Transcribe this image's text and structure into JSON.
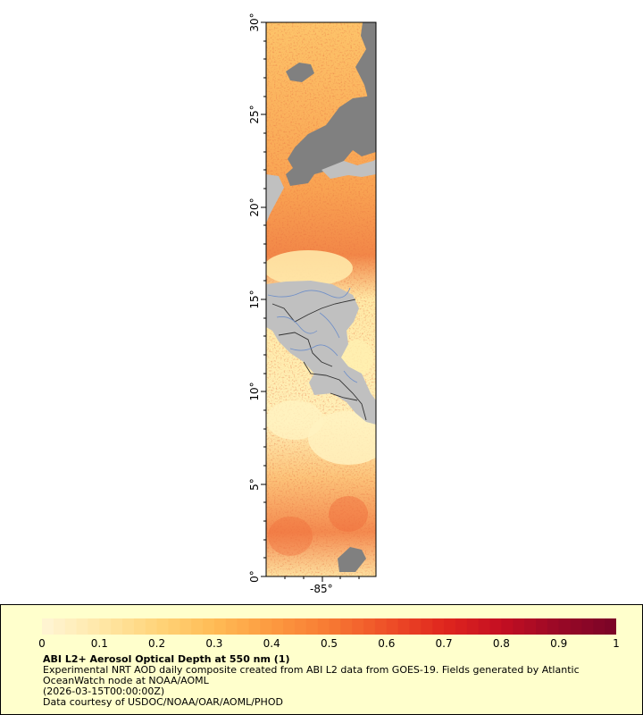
{
  "map": {
    "y_axis_labels": [
      "30°",
      "25°",
      "20°",
      "15°",
      "10°",
      "5°",
      "0°"
    ],
    "x_axis_labels": [
      "-85°"
    ],
    "colors": {
      "land": "#c0c0c0",
      "no_data": "#808080",
      "borders": "#333333",
      "rivers": "#6f8fc8"
    }
  },
  "legend": {
    "ticks": [
      "0",
      "0.1",
      "0.2",
      "0.3",
      "0.4",
      "0.5",
      "0.6",
      "0.7",
      "0.8",
      "0.9",
      "1"
    ],
    "colormap": [
      "#fff5d6",
      "#ffe8a8",
      "#ffd47a",
      "#ffbb55",
      "#fc9a40",
      "#f77a33",
      "#ee5028",
      "#e0261e",
      "#c40f22",
      "#990826",
      "#7a0427"
    ],
    "title": "ABI L2+ Aerosol Optical Depth at 550 nm (1)",
    "line1": "Experimental NRT AOD daily composite created from ABI L2 data from GOES-19. Fields generated by Atlantic OceanWatch node at NOAA/AOML",
    "line2": "(2026-03-15T00:00:00Z)",
    "line3": "Data courtesy of USDOC/NOAA/OAR/AOML/PHOD"
  }
}
